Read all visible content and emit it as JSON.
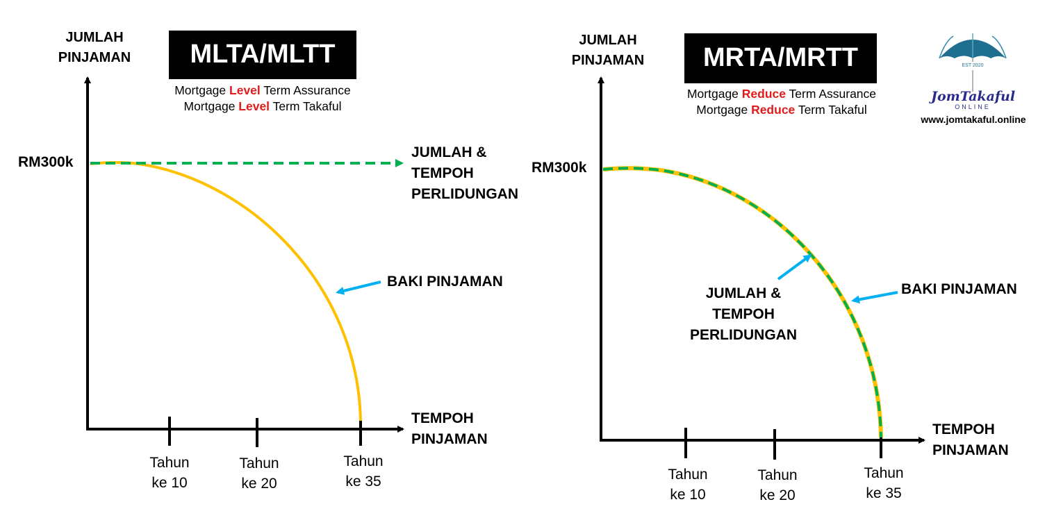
{
  "colors": {
    "balance_curve": "#ffc000",
    "coverage_line": "#00b050",
    "pointer_arrow": "#00b0f0",
    "axis": "#000000",
    "highlight": "#e01b1b"
  },
  "left_panel": {
    "y_axis_label_line1": "JUMLAH",
    "y_axis_label_line2": "PINJAMAN",
    "title": "MLTA/MLTT",
    "subtitle1": {
      "pre": "Mortgage ",
      "highlight": "Level",
      "post": " Term Assurance"
    },
    "subtitle2": {
      "pre": "Mortgage ",
      "highlight": "Level",
      "post": " Term Takaful"
    },
    "y_value_label": "RM300k",
    "coverage_label_line1": "JUMLAH &",
    "coverage_label_line2": "TEMPOH",
    "coverage_label_line3": "PERLIDUNGAN",
    "balance_label": "BAKI PINJAMAN",
    "x_axis_label_line1": "TEMPOH",
    "x_axis_label_line2": "PINJAMAN",
    "ticks": [
      {
        "line1": "Tahun",
        "line2": "ke 10"
      },
      {
        "line1": "Tahun",
        "line2": "ke 20"
      },
      {
        "line1": "Tahun",
        "line2": "ke 35"
      }
    ]
  },
  "right_panel": {
    "y_axis_label_line1": "JUMLAH",
    "y_axis_label_line2": "PINJAMAN",
    "title": "MRTA/MRTT",
    "subtitle1": {
      "pre": "Mortgage ",
      "highlight": "Reduce",
      "post": " Term Assurance"
    },
    "subtitle2": {
      "pre": "Mortgage ",
      "highlight": "Reduce",
      "post": " Term Takaful"
    },
    "y_value_label": "RM300k",
    "coverage_label_line1": "JUMLAH &",
    "coverage_label_line2": "TEMPOH",
    "coverage_label_line3": "PERLIDUNGAN",
    "balance_label": "BAKI PINJAMAN",
    "x_axis_label_line1": "TEMPOH",
    "x_axis_label_line2": "PINJAMAN",
    "ticks": [
      {
        "line1": "Tahun",
        "line2": "ke 10"
      },
      {
        "line1": "Tahun",
        "line2": "ke 20"
      },
      {
        "line1": "Tahun",
        "line2": "ke 35"
      }
    ]
  },
  "logo": {
    "icon": "umbrella-icon",
    "est_text": "EST 2020",
    "brand": "JomTakaful",
    "brand_sub": "ONLINE",
    "website": "www.jomtakaful.online"
  }
}
